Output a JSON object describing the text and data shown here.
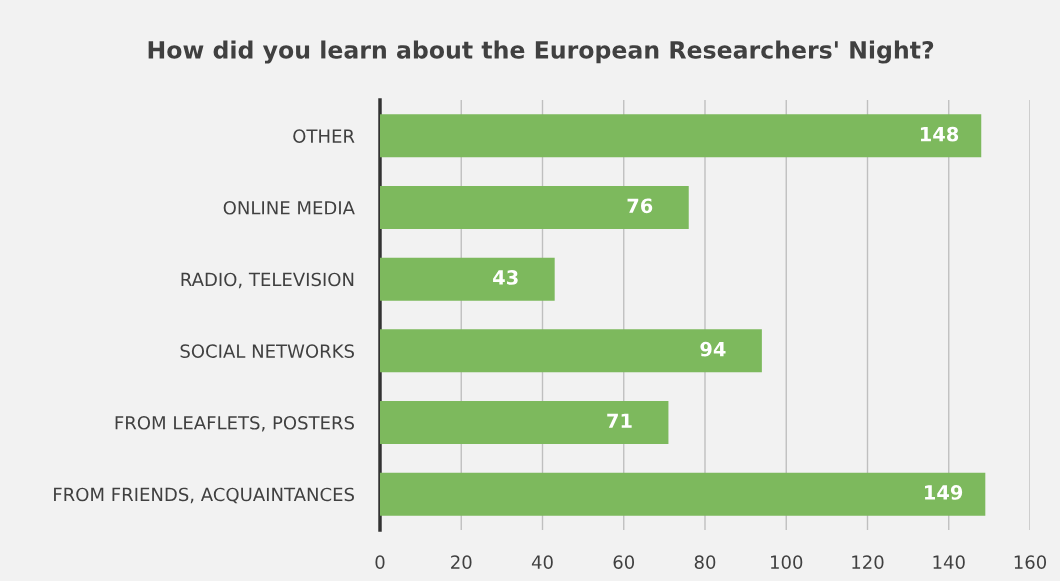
{
  "chart_data": {
    "type": "bar",
    "orientation": "horizontal",
    "title": "How did you learn about the European Researchers' Night?",
    "categories": [
      "OTHER",
      "ONLINE MEDIA",
      "RADIO, TELEVISION",
      "SOCIAL NETWORKS",
      "FROM LEAFLETS, POSTERS",
      "FROM FRIENDS, ACQUAINTANCES"
    ],
    "values": [
      148,
      76,
      43,
      94,
      71,
      149
    ],
    "color": "#7db95d",
    "xlim": [
      0,
      160
    ],
    "xticks": [
      0,
      20,
      40,
      60,
      80,
      100,
      120,
      140,
      160
    ],
    "grid": "x",
    "data_labels": true
  }
}
